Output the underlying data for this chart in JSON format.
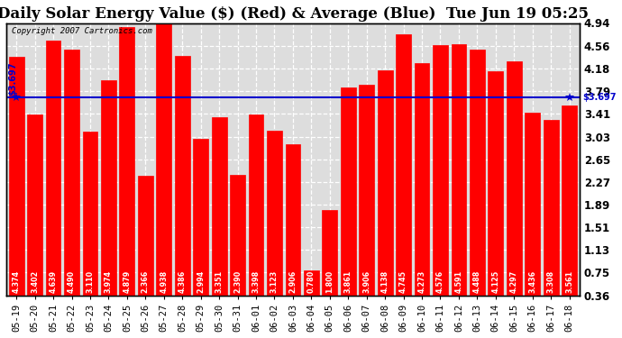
{
  "title": "Daily Solar Energy Value ($) (Red) & Average (Blue)  Tue Jun 19 05:25",
  "copyright": "Copyright 2007 Cartronics.com",
  "average": 3.697,
  "bar_color": "#FF0000",
  "average_color": "#0000CC",
  "fig_bg_color": "#FFFFFF",
  "plot_bg_color": "#DDDDDD",
  "categories": [
    "05-19",
    "05-20",
    "05-21",
    "05-22",
    "05-23",
    "05-24",
    "05-25",
    "05-26",
    "05-27",
    "05-28",
    "05-29",
    "05-30",
    "05-31",
    "06-01",
    "06-02",
    "06-03",
    "06-04",
    "06-05",
    "06-06",
    "06-07",
    "06-08",
    "06-09",
    "06-10",
    "06-11",
    "06-12",
    "06-13",
    "06-14",
    "06-15",
    "06-16",
    "06-17",
    "06-18"
  ],
  "values": [
    4.374,
    3.402,
    4.639,
    4.49,
    3.11,
    3.974,
    4.879,
    2.366,
    4.938,
    4.386,
    2.994,
    3.351,
    2.39,
    3.398,
    3.123,
    2.906,
    0.78,
    1.8,
    3.861,
    3.906,
    4.138,
    4.745,
    4.273,
    4.576,
    4.591,
    4.488,
    4.125,
    4.297,
    3.436,
    3.308,
    3.561
  ],
  "yticks": [
    0.36,
    0.75,
    1.13,
    1.51,
    1.89,
    2.27,
    2.65,
    3.03,
    3.41,
    3.79,
    4.18,
    4.56,
    4.94
  ],
  "ylim": [
    0.36,
    4.94
  ],
  "grid_color": "#FFFFFF",
  "title_fontsize": 12,
  "tick_fontsize": 8.5,
  "value_fontsize": 5.8
}
